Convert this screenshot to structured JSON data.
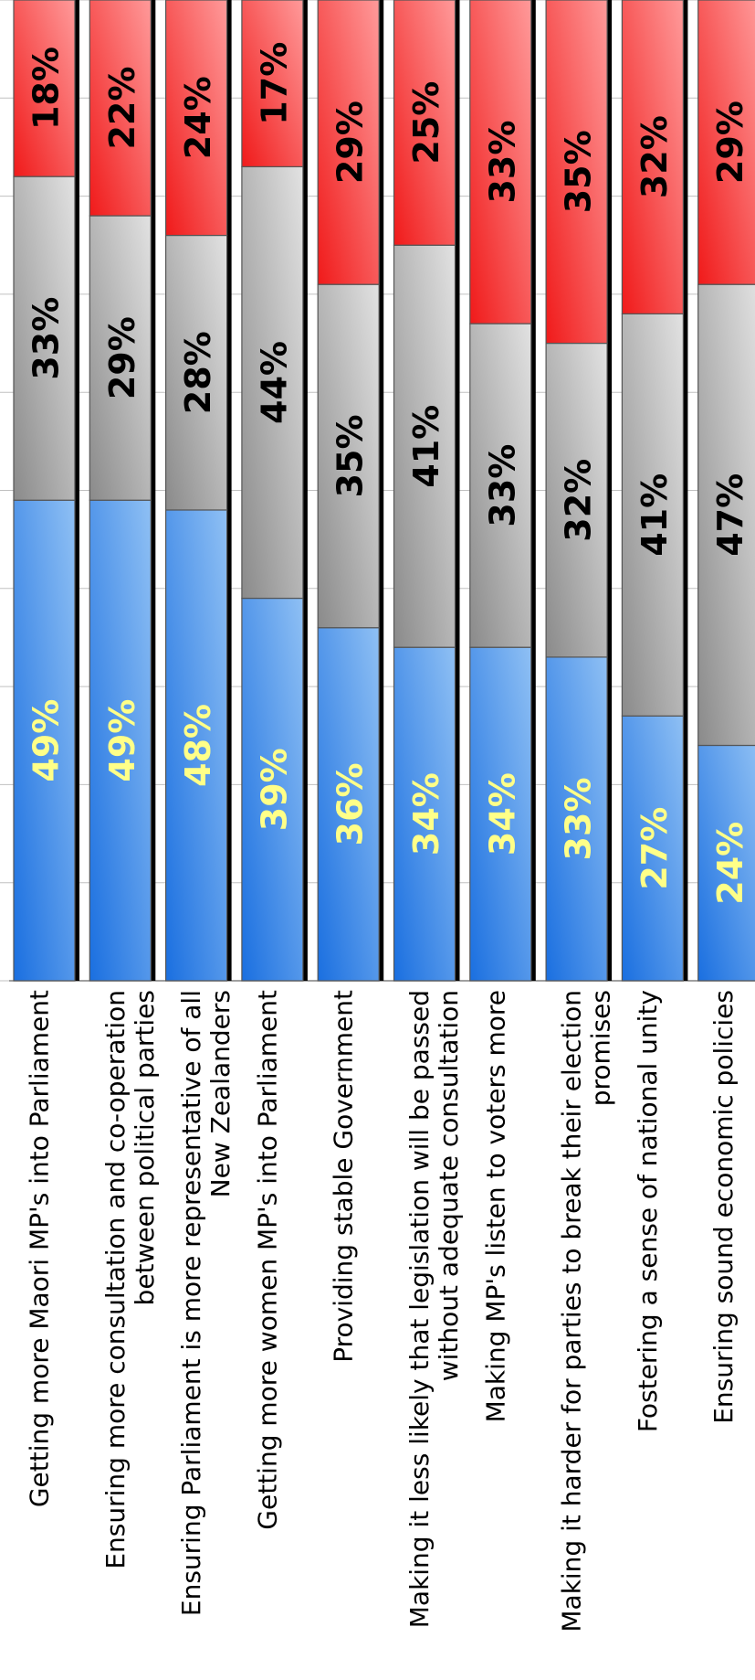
{
  "chart_data": {
    "type": "bar",
    "stacked": true,
    "orientation": "rotated-90",
    "categories": [
      "Getting more Maori MP's into Parliament",
      "Ensuring more consultation and co-operation between political parties",
      "Ensuring Parliament is more representative of all New Zealanders",
      "Getting more women MP's into Parliament",
      "Providing stable Government",
      "Making it less likely that legislation will be passed without adequate consultation",
      "Making MP's listen to voters more",
      "Making it harder for parties to break their election promises",
      "Fostering a sense of national unity",
      "Ensuring sound economic policies"
    ],
    "series": [
      {
        "values": [
          49,
          49,
          48,
          39,
          36,
          34,
          34,
          33,
          27,
          24
        ]
      },
      {
        "values": [
          33,
          29,
          28,
          44,
          35,
          41,
          33,
          32,
          41,
          47
        ]
      },
      {
        "values": [
          18,
          22,
          24,
          17,
          29,
          25,
          33,
          35,
          32,
          29
        ]
      }
    ],
    "data_labels": [
      [
        "49%",
        "49%",
        "48%",
        "39%",
        "36%",
        "34%",
        "34%",
        "33%",
        "27%",
        "24%"
      ],
      [
        "33%",
        "29%",
        "28%",
        "44%",
        "35%",
        "41%",
        "33%",
        "32%",
        "41%",
        "47%"
      ],
      [
        "18%",
        "22%",
        "24%",
        "17%",
        "29%",
        "25%",
        "33%",
        "35%",
        "32%",
        "29%"
      ]
    ],
    "category_lines": [
      [
        "Getting more Maori MP's into Parliament"
      ],
      [
        "Ensuring more consultation and co-operation",
        "between political parties"
      ],
      [
        "Ensuring Parliament is more representative of all",
        "New Zealanders"
      ],
      [
        "Getting more women MP's into Parliament"
      ],
      [
        "Providing stable Government"
      ],
      [
        "Making it less likely that legislation will be passed",
        "without adequate consultation"
      ],
      [
        "Making MP's listen to voters more"
      ],
      [
        "Making it harder for parties to break their election",
        "promises"
      ],
      [
        "Fostering a sense of national unity"
      ],
      [
        "Ensuring sound economic policies"
      ]
    ],
    "ylim": [
      0,
      100
    ],
    "grid": true,
    "legend": "none",
    "colors": {
      "series_dark": [
        "#1a6fe0",
        "#8a8a8a",
        "#f01a1a"
      ],
      "series_light": [
        "#8fc0f4",
        "#e2e2e2",
        "#ff9a9a"
      ],
      "label_colors": [
        "#ffff88",
        "#000000",
        "#000000"
      ],
      "gridline": "#c0c0c0",
      "bar_outline": "#555555",
      "bar_shadow": "#000000"
    }
  }
}
